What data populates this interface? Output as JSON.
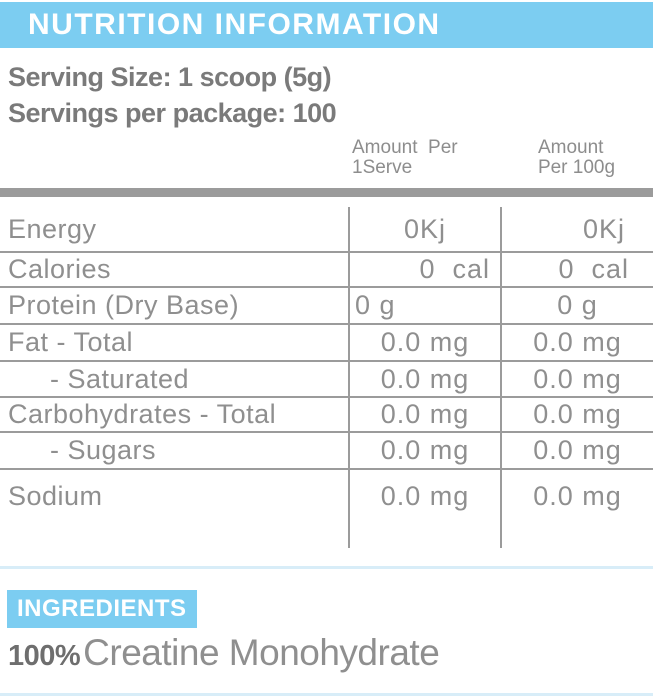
{
  "header": {
    "title": "NUTRITION INFORMATION"
  },
  "serving": {
    "size": "Serving Size: 1 scoop (5g)",
    "per_package": "Servings per package: 100"
  },
  "columns": {
    "per_serve": {
      "line1": "Amount  Per",
      "line2": "1Serve"
    },
    "per_100g": {
      "line1": "Amount",
      "line2": "Per 100g"
    }
  },
  "table": {
    "rows": [
      {
        "label": "Energy",
        "per_serve": "0Kj",
        "per_100g": "0Kj"
      },
      {
        "label": "Calories",
        "per_serve": "0  cal",
        "per_100g": "0  cal"
      },
      {
        "label": "Protein (Dry Base)",
        "per_serve": "0 g",
        "per_100g": "0 g"
      },
      {
        "label": "Fat - Total",
        "per_serve": "0.0 mg",
        "per_100g": "0.0 mg"
      },
      {
        "label": "- Saturated",
        "per_serve": "0.0 mg",
        "per_100g": "0.0 mg"
      },
      {
        "label": "Carbohydrates - Total",
        "per_serve": "0.0 mg",
        "per_100g": "0.0 mg"
      },
      {
        "label": "- Sugars",
        "per_serve": "0.0 mg",
        "per_100g": "0.0 mg"
      },
      {
        "label": "Sodium",
        "per_serve": "0.0 mg",
        "per_100g": "0.0 mg"
      }
    ]
  },
  "ingredients": {
    "heading": "INGREDIENTS",
    "percent": "100%",
    "name": "Creatine Monohydrate"
  },
  "colors": {
    "accent_blue": "#7ccdf1",
    "pale_blue": "#d8edf8",
    "line_gray": "#9b9b9b",
    "text_gray": "#8f8f8f"
  }
}
